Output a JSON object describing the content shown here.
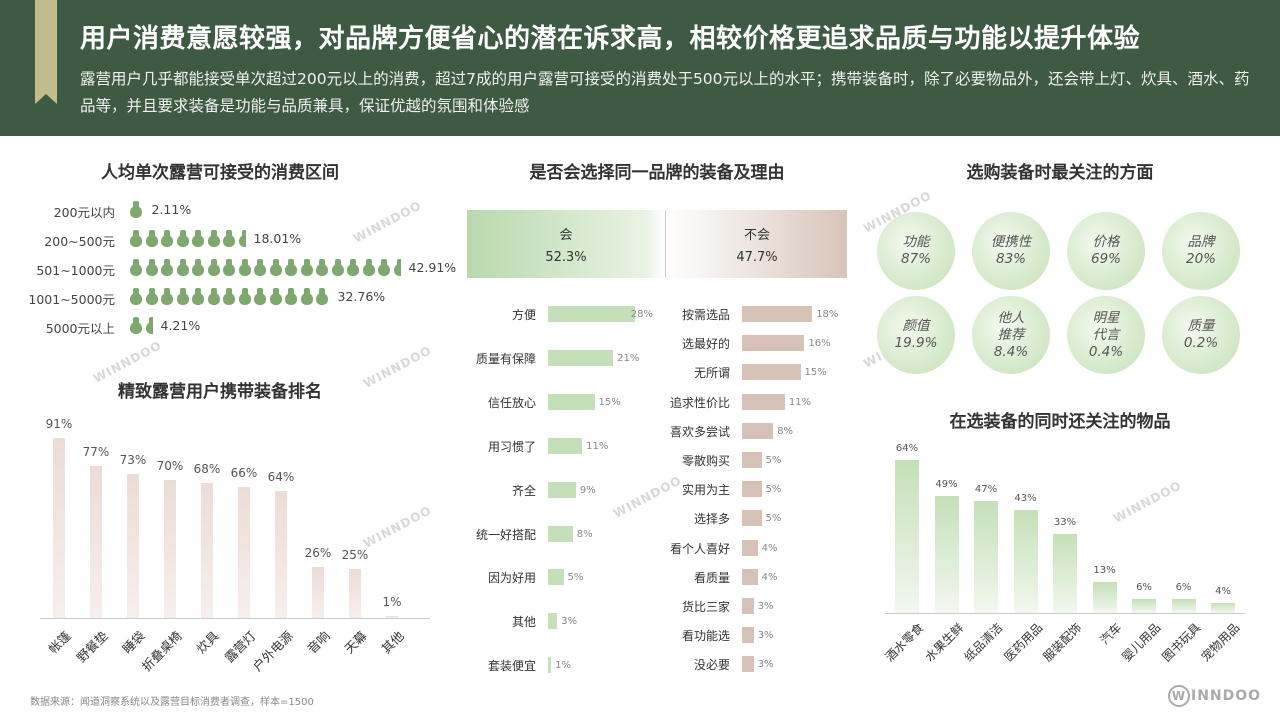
{
  "header": {
    "title": "用户消费意愿较强，对品牌方便省心的潜在诉求高，相较价格更追求品质与功能以提升体验",
    "subtitle": "露营用户几乎都能接受单次超过200元以上的消费，超过7成的用户露营可接受的消费处于500元以上的水平；携带装备时，除了必要物品外，还会带上灯、炊具、酒水、药品等，并且要求装备是功能与品质兼具，保证优越的氛围和体验感"
  },
  "watermark_text": "WINNDOO",
  "footer": {
    "source": "数据来源：闻道洞察系统以及露营目标消费者调查，样本=1500",
    "logo_w": "W",
    "logo_text": "INNDOO"
  },
  "colors": {
    "header_bg": "#3e5a43",
    "green": "#7fa86f",
    "light_green": "#c5e0b8",
    "pink": "#ecdcd6",
    "brown": "#d6c1b6"
  },
  "chart_data": [
    {
      "id": "spend-range",
      "type": "bar",
      "title": "人均单次露营可接受的消费区间",
      "categories": [
        "200元以内",
        "200~500元",
        "501~1000元",
        "1001~5000元",
        "5000元以上"
      ],
      "values": [
        2.11,
        18.01,
        42.91,
        32.76,
        4.21
      ],
      "labels": [
        "2.11%",
        "18.01%",
        "42.91%",
        "32.76%",
        "4.21%"
      ],
      "icon_counts": [
        1,
        7.5,
        17.5,
        13,
        1.5
      ]
    },
    {
      "id": "gear-ranking",
      "type": "bar",
      "title": "精致露营用户携带装备排名",
      "categories": [
        "帐篷",
        "野餐垫",
        "睡袋",
        "折叠桌椅",
        "炊具",
        "露营灯",
        "户外电源",
        "音响",
        "天幕",
        "其他"
      ],
      "values": [
        91,
        77,
        73,
        70,
        68,
        66,
        64,
        26,
        25,
        1
      ],
      "labels": [
        "91%",
        "77%",
        "73%",
        "70%",
        "68%",
        "66%",
        "64%",
        "26%",
        "25%",
        "1%"
      ],
      "ylim": [
        0,
        100
      ]
    },
    {
      "id": "same-brand",
      "type": "bar",
      "title": "是否会选择同一品牌的装备及理由",
      "series": [
        {
          "name": "会",
          "share": "52.3%",
          "categories": [
            "方便",
            "质量有保障",
            "信任放心",
            "用习惯了",
            "齐全",
            "统一好搭配",
            "因为好用",
            "其他",
            "套装便宜"
          ],
          "values": [
            28,
            21,
            15,
            11,
            9,
            8,
            5,
            3,
            1
          ],
          "labels": [
            "28%",
            "21%",
            "15%",
            "11%",
            "9%",
            "8%",
            "5%",
            "3%",
            "1%"
          ]
        },
        {
          "name": "不会",
          "share": "47.7%",
          "categories": [
            "按需选品",
            "选最好的",
            "无所谓",
            "追求性价比",
            "喜欢多尝试",
            "零散购买",
            "实用为主",
            "选择多",
            "看个人喜好",
            "看质量",
            "货比三家",
            "看功能选",
            "没必要"
          ],
          "values": [
            18,
            16,
            15,
            11,
            8,
            5,
            5,
            5,
            4,
            4,
            3,
            3,
            3
          ],
          "labels": [
            "18%",
            "16%",
            "15%",
            "11%",
            "8%",
            "5%",
            "5%",
            "5%",
            "4%",
            "4%",
            "3%",
            "3%",
            "3%"
          ]
        }
      ]
    },
    {
      "id": "focus",
      "type": "table",
      "title": "选购装备时最关注的方面",
      "items": [
        {
          "name": "功能",
          "value": "87%"
        },
        {
          "name": "便携性",
          "value": "83%"
        },
        {
          "name": "价格",
          "value": "69%"
        },
        {
          "name": "品牌",
          "value": "20%"
        },
        {
          "name": "颜值",
          "value": "19.9%"
        },
        {
          "name": "他人推荐",
          "name_lines": [
            "他人",
            "推荐"
          ],
          "value": "8.4%"
        },
        {
          "name": "明星代言",
          "name_lines": [
            "明星",
            "代言"
          ],
          "value": "0.4%"
        },
        {
          "name": "质量",
          "value": "0.2%"
        }
      ]
    },
    {
      "id": "also-focus",
      "type": "bar",
      "title": "在选装备的同时还关注的物品",
      "categories": [
        "酒水零食",
        "水果生鲜",
        "纸品清洁",
        "医药用品",
        "服装配饰",
        "汽车",
        "婴儿用品",
        "图书玩具",
        "宠物用品"
      ],
      "values": [
        64,
        49,
        47,
        43,
        33,
        13,
        6,
        6,
        4
      ],
      "labels": [
        "64%",
        "49%",
        "47%",
        "43%",
        "33%",
        "13%",
        "6%",
        "6%",
        "4%"
      ],
      "ylim": [
        0,
        70
      ]
    }
  ]
}
